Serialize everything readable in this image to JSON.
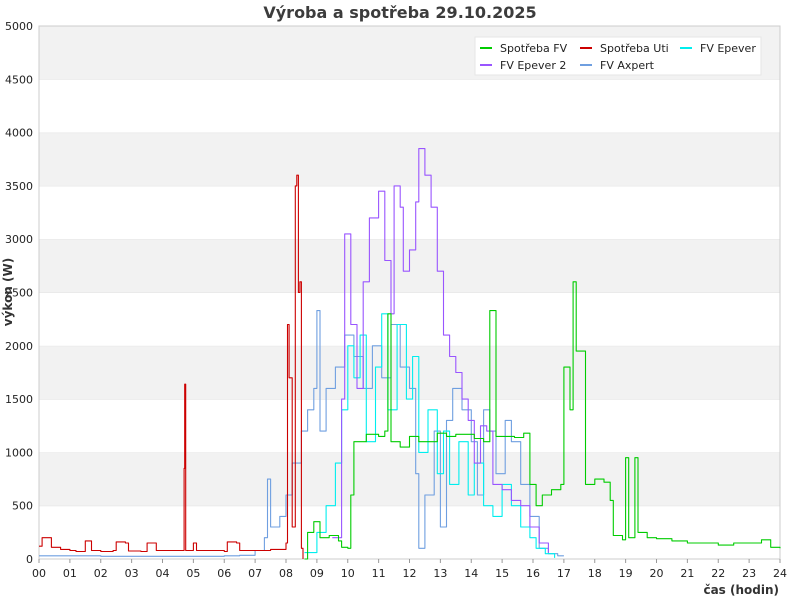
{
  "chart_data": {
    "type": "line",
    "title": "Výroba a spotřeba 29.10.2025",
    "xlabel": "čas (hodin)",
    "ylabel": "výkon (W)",
    "xlim": [
      0,
      24
    ],
    "ylim": [
      0,
      5000
    ],
    "x_ticks": [
      "00",
      "01",
      "02",
      "03",
      "04",
      "05",
      "06",
      "07",
      "08",
      "09",
      "10",
      "11",
      "12",
      "13",
      "14",
      "15",
      "16",
      "17",
      "18",
      "19",
      "20",
      "21",
      "22",
      "23",
      "24"
    ],
    "y_ticks": [
      "0",
      "500",
      "1000",
      "1500",
      "2000",
      "2500",
      "3000",
      "3500",
      "4000",
      "4500",
      "5000"
    ],
    "grid": "horizontal bands",
    "legend_position": "top-right",
    "series": [
      {
        "name": "Spotřeba FV",
        "color": "#00cc00",
        "points": [
          [
            8.6,
            0
          ],
          [
            8.7,
            250
          ],
          [
            8.9,
            350
          ],
          [
            9.1,
            200
          ],
          [
            9.4,
            220
          ],
          [
            9.7,
            170
          ],
          [
            9.8,
            110
          ],
          [
            10.0,
            100
          ],
          [
            10.1,
            600
          ],
          [
            10.2,
            1100
          ],
          [
            10.6,
            1170
          ],
          [
            11.0,
            1150
          ],
          [
            11.2,
            1200
          ],
          [
            11.3,
            2300
          ],
          [
            11.4,
            1100
          ],
          [
            11.7,
            1050
          ],
          [
            12.0,
            1150
          ],
          [
            12.3,
            1100
          ],
          [
            12.6,
            1100
          ],
          [
            12.9,
            1180
          ],
          [
            13.2,
            1150
          ],
          [
            13.5,
            1170
          ],
          [
            13.8,
            1170
          ],
          [
            14.1,
            1130
          ],
          [
            14.4,
            1100
          ],
          [
            14.6,
            2330
          ],
          [
            14.8,
            1150
          ],
          [
            15.1,
            1150
          ],
          [
            15.4,
            1140
          ],
          [
            15.7,
            1180
          ],
          [
            15.9,
            700
          ],
          [
            16.1,
            500
          ],
          [
            16.3,
            600
          ],
          [
            16.6,
            650
          ],
          [
            16.9,
            700
          ],
          [
            17.0,
            1800
          ],
          [
            17.2,
            1400
          ],
          [
            17.3,
            2600
          ],
          [
            17.4,
            1950
          ],
          [
            17.6,
            1950
          ],
          [
            17.7,
            700
          ],
          [
            18.0,
            750
          ],
          [
            18.3,
            720
          ],
          [
            18.5,
            550
          ],
          [
            18.6,
            220
          ],
          [
            18.9,
            180
          ],
          [
            19.0,
            950
          ],
          [
            19.1,
            200
          ],
          [
            19.3,
            950
          ],
          [
            19.4,
            250
          ],
          [
            19.7,
            200
          ],
          [
            20.0,
            190
          ],
          [
            20.5,
            170
          ],
          [
            21.0,
            150
          ],
          [
            21.5,
            150
          ],
          [
            22.0,
            130
          ],
          [
            22.5,
            150
          ],
          [
            23.0,
            150
          ],
          [
            23.4,
            180
          ],
          [
            23.7,
            110
          ],
          [
            24.0,
            100
          ]
        ]
      },
      {
        "name": "Spotřeba Uti",
        "color": "#cc0000",
        "points": [
          [
            0.0,
            120
          ],
          [
            0.1,
            200
          ],
          [
            0.4,
            110
          ],
          [
            0.7,
            90
          ],
          [
            1.0,
            80
          ],
          [
            1.2,
            70
          ],
          [
            1.5,
            170
          ],
          [
            1.7,
            80
          ],
          [
            2.0,
            70
          ],
          [
            2.4,
            80
          ],
          [
            2.5,
            160
          ],
          [
            2.8,
            150
          ],
          [
            2.9,
            75
          ],
          [
            3.3,
            70
          ],
          [
            3.5,
            150
          ],
          [
            3.8,
            80
          ],
          [
            4.2,
            80
          ],
          [
            4.4,
            80
          ],
          [
            4.7,
            850
          ],
          [
            4.72,
            1640
          ],
          [
            4.75,
            80
          ],
          [
            5.0,
            150
          ],
          [
            5.1,
            80
          ],
          [
            5.6,
            80
          ],
          [
            6.0,
            70
          ],
          [
            6.1,
            160
          ],
          [
            6.4,
            150
          ],
          [
            6.5,
            80
          ],
          [
            7.0,
            80
          ],
          [
            7.5,
            90
          ],
          [
            8.0,
            150
          ],
          [
            8.05,
            2200
          ],
          [
            8.1,
            1700
          ],
          [
            8.2,
            300
          ],
          [
            8.3,
            3500
          ],
          [
            8.35,
            3600
          ],
          [
            8.4,
            2500
          ],
          [
            8.45,
            2600
          ],
          [
            8.5,
            100
          ],
          [
            8.55,
            0
          ]
        ]
      },
      {
        "name": "FV Epever",
        "color": "#00eeee",
        "points": [
          [
            8.6,
            60
          ],
          [
            9.0,
            250
          ],
          [
            9.3,
            500
          ],
          [
            9.6,
            900
          ],
          [
            9.8,
            1400
          ],
          [
            10.0,
            2000
          ],
          [
            10.2,
            1700
          ],
          [
            10.4,
            2100
          ],
          [
            10.6,
            1100
          ],
          [
            10.9,
            1800
          ],
          [
            11.1,
            2300
          ],
          [
            11.3,
            1400
          ],
          [
            11.6,
            2200
          ],
          [
            11.9,
            1500
          ],
          [
            12.1,
            1900
          ],
          [
            12.3,
            1000
          ],
          [
            12.6,
            1400
          ],
          [
            12.9,
            800
          ],
          [
            13.1,
            1200
          ],
          [
            13.3,
            700
          ],
          [
            13.6,
            1100
          ],
          [
            13.9,
            600
          ],
          [
            14.1,
            900
          ],
          [
            14.4,
            500
          ],
          [
            14.7,
            400
          ],
          [
            15.0,
            700
          ],
          [
            15.3,
            500
          ],
          [
            15.6,
            300
          ],
          [
            15.9,
            200
          ],
          [
            16.1,
            100
          ],
          [
            16.4,
            50
          ],
          [
            16.7,
            10
          ]
        ]
      },
      {
        "name": "FV Epever 2",
        "color": "#9955ff",
        "points": [
          [
            9.5,
            200
          ],
          [
            9.8,
            1500
          ],
          [
            9.9,
            3050
          ],
          [
            10.1,
            2200
          ],
          [
            10.3,
            1600
          ],
          [
            10.5,
            2600
          ],
          [
            10.7,
            3200
          ],
          [
            11.0,
            3450
          ],
          [
            11.2,
            2800
          ],
          [
            11.4,
            2300
          ],
          [
            11.5,
            3500
          ],
          [
            11.7,
            3300
          ],
          [
            11.8,
            2700
          ],
          [
            12.0,
            2900
          ],
          [
            12.2,
            3350
          ],
          [
            12.3,
            3850
          ],
          [
            12.5,
            3600
          ],
          [
            12.7,
            3300
          ],
          [
            12.9,
            2700
          ],
          [
            13.1,
            2100
          ],
          [
            13.3,
            1900
          ],
          [
            13.5,
            1750
          ],
          [
            13.7,
            1500
          ],
          [
            13.9,
            1300
          ],
          [
            14.1,
            900
          ],
          [
            14.3,
            1250
          ],
          [
            14.5,
            1200
          ],
          [
            14.7,
            700
          ],
          [
            15.0,
            650
          ],
          [
            15.3,
            550
          ],
          [
            15.6,
            500
          ],
          [
            15.9,
            300
          ],
          [
            16.2,
            150
          ],
          [
            16.5,
            60
          ]
        ]
      },
      {
        "name": "FV Axpert",
        "color": "#6f9fe0",
        "points": [
          [
            0.0,
            30
          ],
          [
            1.0,
            30
          ],
          [
            2.0,
            25
          ],
          [
            3.0,
            25
          ],
          [
            4.0,
            25
          ],
          [
            5.0,
            25
          ],
          [
            6.0,
            30
          ],
          [
            6.5,
            35
          ],
          [
            7.0,
            80
          ],
          [
            7.3,
            200
          ],
          [
            7.4,
            750
          ],
          [
            7.5,
            300
          ],
          [
            7.8,
            400
          ],
          [
            8.0,
            600
          ],
          [
            8.2,
            900
          ],
          [
            8.5,
            1200
          ],
          [
            8.7,
            1400
          ],
          [
            8.9,
            1600
          ],
          [
            9.0,
            2330
          ],
          [
            9.1,
            1200
          ],
          [
            9.3,
            1600
          ],
          [
            9.6,
            1800
          ],
          [
            9.9,
            2100
          ],
          [
            10.2,
            1900
          ],
          [
            10.5,
            1600
          ],
          [
            10.8,
            2000
          ],
          [
            11.1,
            1700
          ],
          [
            11.4,
            2200
          ],
          [
            11.7,
            1800
          ],
          [
            12.0,
            1600
          ],
          [
            12.2,
            800
          ],
          [
            12.3,
            100
          ],
          [
            12.5,
            600
          ],
          [
            12.8,
            1200
          ],
          [
            13.0,
            300
          ],
          [
            13.2,
            1300
          ],
          [
            13.4,
            1600
          ],
          [
            13.7,
            1400
          ],
          [
            14.0,
            1100
          ],
          [
            14.2,
            600
          ],
          [
            14.4,
            1400
          ],
          [
            14.6,
            1200
          ],
          [
            14.8,
            800
          ],
          [
            15.1,
            1300
          ],
          [
            15.3,
            1100
          ],
          [
            15.6,
            700
          ],
          [
            15.9,
            400
          ],
          [
            16.2,
            100
          ],
          [
            16.5,
            50
          ],
          [
            16.8,
            30
          ],
          [
            17.0,
            30
          ]
        ]
      }
    ]
  }
}
